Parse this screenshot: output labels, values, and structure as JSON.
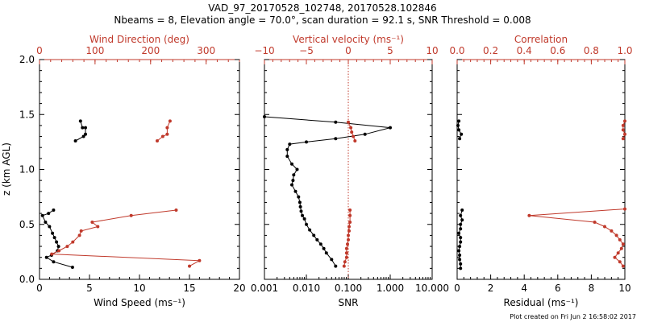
{
  "title_line1": "VAD_97_20170528_102748, 20170528.102846",
  "title_line2": "Nbeams = 8, Elevation angle = 70.0°, scan duration = 92.1 s, SNR Threshold = 0.008",
  "ylabel": "z (km AGL)",
  "credit": "Plot created on Fri Jun  2 16:58:02 2017",
  "colors": {
    "black_series": "#000000",
    "red_series": "#c0392b"
  },
  "chart_data": [
    {
      "type": "line",
      "panel": "wind",
      "ylim": [
        0,
        2
      ],
      "yticks": [
        "0.0",
        "0.5",
        "1.0",
        "1.5",
        "2.0"
      ],
      "bottom_axis": {
        "label": "Wind Speed (ms⁻¹)",
        "lim": [
          0,
          20
        ],
        "ticks": [
          "0",
          "5",
          "10",
          "15",
          "20"
        ]
      },
      "top_axis": {
        "label": "Wind Direction (deg)",
        "lim": [
          0,
          360
        ],
        "ticks": [
          "0",
          "100",
          "200",
          "300"
        ]
      },
      "series": [
        {
          "axis": "bottom",
          "color": "black",
          "segments": [
            [
              [
                4.1,
                1.44
              ],
              [
                4.3,
                1.38
              ],
              [
                4.6,
                1.38
              ],
              [
                4.6,
                1.32
              ],
              [
                4.4,
                1.3
              ],
              [
                3.6,
                1.26
              ]
            ],
            [
              [
                1.4,
                0.63
              ],
              [
                0.9,
                0.6
              ],
              [
                0.3,
                0.58
              ],
              [
                0.6,
                0.52
              ],
              [
                1.0,
                0.48
              ],
              [
                1.3,
                0.42
              ],
              [
                1.5,
                0.38
              ],
              [
                1.7,
                0.34
              ],
              [
                1.9,
                0.3
              ],
              [
                1.8,
                0.26
              ],
              [
                1.2,
                0.22
              ],
              [
                0.7,
                0.2
              ],
              [
                1.4,
                0.16
              ],
              [
                3.3,
                0.11
              ]
            ]
          ]
        },
        {
          "axis": "top",
          "color": "red",
          "segments": [
            [
              [
                235,
                1.44
              ],
              [
                230,
                1.38
              ],
              [
                230,
                1.32
              ],
              [
                222,
                1.3
              ],
              [
                212,
                1.26
              ]
            ],
            [
              [
                246,
                0.63
              ],
              [
                165,
                0.58
              ],
              [
                95,
                0.52
              ],
              [
                105,
                0.48
              ],
              [
                75,
                0.44
              ],
              [
                72,
                0.4
              ],
              [
                60,
                0.34
              ],
              [
                50,
                0.3
              ],
              [
                35,
                0.26
              ],
              [
                22,
                0.23
              ],
              [
                288,
                0.17
              ],
              [
                270,
                0.12
              ]
            ]
          ]
        }
      ]
    },
    {
      "type": "line",
      "panel": "snr_w",
      "ylim": [
        0,
        2
      ],
      "bottom_axis": {
        "label": "SNR",
        "scale": "log",
        "lim": [
          0.001,
          10
        ],
        "ticks": [
          "0.001",
          "0.010",
          "0.100",
          "1.000",
          "10.000"
        ]
      },
      "top_axis": {
        "label": "Vertical velocity (ms⁻¹)",
        "lim": [
          -10,
          10
        ],
        "ticks": [
          "−10",
          "−5",
          "0",
          "5",
          "10"
        ]
      },
      "zero_line": 0,
      "series": [
        {
          "axis": "bottom",
          "color": "black",
          "segments": [
            [
              [
                0.001,
                1.48
              ],
              [
                0.05,
                1.43
              ],
              [
                1.0,
                1.38
              ],
              [
                0.25,
                1.32
              ],
              [
                0.05,
                1.28
              ],
              [
                0.01,
                1.25
              ],
              [
                0.004,
                1.23
              ],
              [
                0.0035,
                1.18
              ],
              [
                0.0035,
                1.12
              ],
              [
                0.0045,
                1.05
              ],
              [
                0.006,
                1.0
              ],
              [
                0.005,
                0.95
              ],
              [
                0.0048,
                0.9
              ],
              [
                0.0045,
                0.86
              ],
              [
                0.0055,
                0.8
              ],
              [
                0.0065,
                0.75
              ],
              [
                0.007,
                0.7
              ],
              [
                0.0072,
                0.66
              ],
              [
                0.0075,
                0.62
              ],
              [
                0.008,
                0.58
              ],
              [
                0.009,
                0.55
              ],
              [
                0.01,
                0.5
              ],
              [
                0.012,
                0.45
              ],
              [
                0.015,
                0.4
              ],
              [
                0.018,
                0.36
              ],
              [
                0.022,
                0.32
              ],
              [
                0.026,
                0.28
              ],
              [
                0.03,
                0.24
              ],
              [
                0.04,
                0.18
              ],
              [
                0.05,
                0.12
              ]
            ]
          ]
        },
        {
          "axis": "top",
          "color": "red",
          "segments": [
            [
              [
                0.0,
                1.43
              ],
              [
                0.3,
                1.38
              ],
              [
                0.4,
                1.34
              ],
              [
                0.6,
                1.3
              ],
              [
                0.8,
                1.26
              ]
            ],
            [
              [
                0.2,
                0.63
              ],
              [
                0.2,
                0.58
              ],
              [
                0.2,
                0.52
              ],
              [
                0.1,
                0.48
              ],
              [
                0.1,
                0.44
              ],
              [
                0.0,
                0.4
              ],
              [
                0.0,
                0.36
              ],
              [
                -0.1,
                0.32
              ],
              [
                -0.2,
                0.28
              ],
              [
                -0.2,
                0.24
              ],
              [
                -0.2,
                0.2
              ],
              [
                -0.4,
                0.16
              ],
              [
                -0.5,
                0.12
              ]
            ]
          ]
        }
      ]
    },
    {
      "type": "line",
      "panel": "residual",
      "ylim": [
        0,
        2
      ],
      "bottom_axis": {
        "label": "Residual (ms⁻¹)",
        "lim": [
          0,
          10
        ],
        "ticks": [
          "0",
          "2",
          "4",
          "6",
          "8",
          "10"
        ]
      },
      "top_axis": {
        "label": "Correlation",
        "lim": [
          0,
          1
        ],
        "ticks": [
          "0.0",
          "0.2",
          "0.4",
          "0.6",
          "0.8",
          "1.0"
        ]
      },
      "series": [
        {
          "axis": "bottom",
          "color": "black",
          "segments": [
            [
              [
                0.1,
                1.44
              ],
              [
                0.05,
                1.4
              ],
              [
                0.1,
                1.36
              ],
              [
                0.25,
                1.32
              ],
              [
                0.15,
                1.28
              ]
            ],
            [
              [
                0.3,
                0.63
              ],
              [
                0.2,
                0.58
              ],
              [
                0.3,
                0.54
              ],
              [
                0.2,
                0.5
              ],
              [
                0.2,
                0.46
              ],
              [
                0.1,
                0.42
              ],
              [
                0.2,
                0.38
              ],
              [
                0.2,
                0.34
              ],
              [
                0.15,
                0.3
              ],
              [
                0.1,
                0.26
              ],
              [
                0.15,
                0.22
              ],
              [
                0.15,
                0.18
              ],
              [
                0.2,
                0.14
              ],
              [
                0.2,
                0.1
              ]
            ]
          ]
        },
        {
          "axis": "top",
          "color": "red",
          "segments": [
            [
              [
                1.0,
                1.44
              ],
              [
                0.99,
                1.4
              ],
              [
                0.99,
                1.36
              ],
              [
                1.0,
                1.32
              ],
              [
                0.99,
                1.28
              ]
            ],
            [
              [
                1.0,
                0.64
              ],
              [
                0.43,
                0.58
              ],
              [
                0.82,
                0.52
              ],
              [
                0.88,
                0.48
              ],
              [
                0.92,
                0.44
              ],
              [
                0.95,
                0.4
              ],
              [
                0.97,
                0.36
              ],
              [
                0.99,
                0.32
              ],
              [
                0.98,
                0.28
              ],
              [
                0.96,
                0.24
              ],
              [
                0.94,
                0.2
              ],
              [
                0.97,
                0.16
              ],
              [
                0.99,
                0.12
              ]
            ]
          ]
        }
      ]
    }
  ]
}
